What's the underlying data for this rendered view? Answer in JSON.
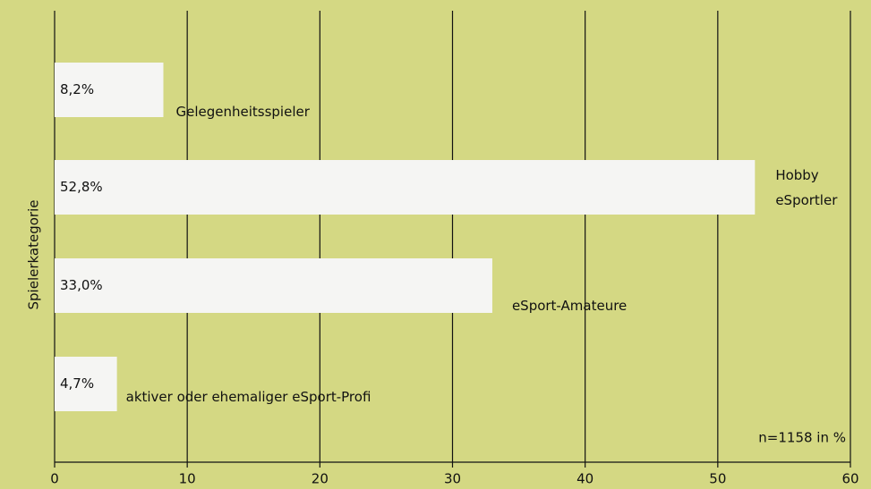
{
  "chart_data": {
    "type": "barh",
    "y_label": "Spielerkategorie",
    "annotation": "n=1158 in %",
    "categories": [
      "Gelegenheitsspieler",
      "Hobby eSportler",
      "eSport-Amateure",
      "aktiver oder ehemaliger eSport-Profi"
    ],
    "values": [
      8.2,
      52.8,
      33.0,
      4.7
    ],
    "value_labels": [
      "8,2%",
      "52,8%",
      "33,0%",
      "4,7%"
    ],
    "color": "#f5f5f3",
    "xlim": [
      0,
      60
    ],
    "xticks": [
      0,
      10,
      20,
      30,
      40,
      50,
      60
    ],
    "grid": true
  }
}
